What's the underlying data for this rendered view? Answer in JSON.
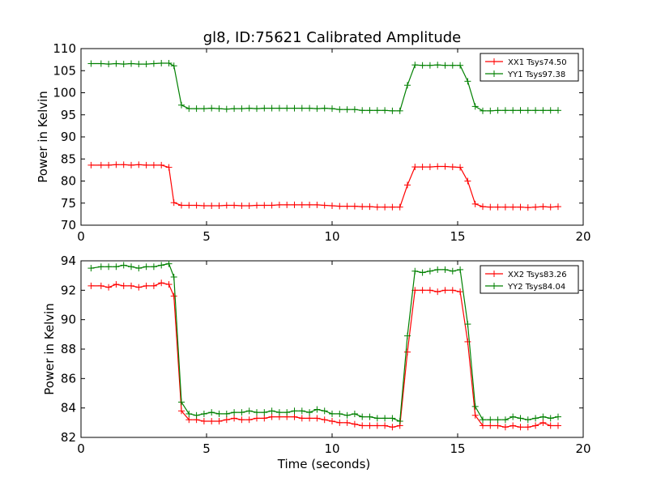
{
  "figure": {
    "title": "gl8, ID:75621 Calibrated Amplitude"
  },
  "chart_data": [
    {
      "type": "line",
      "title": "gl8, ID:75621 Calibrated Amplitude",
      "xlabel": "",
      "ylabel": "Power in Kelvin",
      "xlim": [
        0,
        20
      ],
      "ylim": [
        70,
        110
      ],
      "xticks": [
        0,
        5,
        10,
        15,
        20
      ],
      "yticks": [
        70,
        75,
        80,
        85,
        90,
        95,
        100,
        105,
        110
      ],
      "grid": false,
      "legend_position": "top-right",
      "x": [
        0.4,
        0.8,
        1.1,
        1.4,
        1.7,
        2.0,
        2.3,
        2.6,
        2.9,
        3.2,
        3.5,
        3.7,
        4.0,
        4.3,
        4.6,
        4.9,
        5.2,
        5.5,
        5.8,
        6.1,
        6.4,
        6.7,
        7.0,
        7.3,
        7.6,
        7.9,
        8.2,
        8.5,
        8.8,
        9.1,
        9.4,
        9.7,
        10.0,
        10.3,
        10.6,
        10.9,
        11.2,
        11.5,
        11.8,
        12.1,
        12.4,
        12.7,
        13.0,
        13.3,
        13.6,
        13.9,
        14.2,
        14.5,
        14.8,
        15.1,
        15.4,
        15.7,
        16.0,
        16.3,
        16.6,
        16.9,
        17.2,
        17.5,
        17.8,
        18.1,
        18.4,
        18.7,
        19.0
      ],
      "series": [
        {
          "name": "XX1 Tsys74.50",
          "color": "#ff0000",
          "values": [
            83.6,
            83.6,
            83.6,
            83.7,
            83.7,
            83.6,
            83.7,
            83.6,
            83.6,
            83.6,
            83.1,
            75.1,
            74.5,
            74.5,
            74.5,
            74.4,
            74.4,
            74.4,
            74.5,
            74.5,
            74.4,
            74.4,
            74.5,
            74.5,
            74.5,
            74.6,
            74.6,
            74.6,
            74.6,
            74.6,
            74.6,
            74.5,
            74.4,
            74.3,
            74.3,
            74.3,
            74.2,
            74.2,
            74.1,
            74.1,
            74.1,
            74.1,
            79.1,
            83.2,
            83.2,
            83.2,
            83.3,
            83.3,
            83.2,
            83.1,
            80.0,
            74.8,
            74.2,
            74.1,
            74.1,
            74.1,
            74.1,
            74.1,
            74.0,
            74.1,
            74.2,
            74.1,
            74.2
          ]
        },
        {
          "name": "YY1 Tsys97.38",
          "color": "#008000",
          "values": [
            106.6,
            106.6,
            106.5,
            106.6,
            106.5,
            106.6,
            106.5,
            106.5,
            106.6,
            106.7,
            106.7,
            106.1,
            97.2,
            96.4,
            96.4,
            96.4,
            96.5,
            96.4,
            96.3,
            96.4,
            96.4,
            96.5,
            96.4,
            96.5,
            96.5,
            96.5,
            96.5,
            96.5,
            96.5,
            96.5,
            96.4,
            96.5,
            96.4,
            96.2,
            96.2,
            96.2,
            96.0,
            96.0,
            96.0,
            96.0,
            95.9,
            95.9,
            101.7,
            106.3,
            106.2,
            106.2,
            106.3,
            106.2,
            106.2,
            106.2,
            102.6,
            96.9,
            95.9,
            95.9,
            96.0,
            96.0,
            96.0,
            96.0,
            96.0,
            96.0,
            96.0,
            96.0,
            96.0
          ]
        }
      ]
    },
    {
      "type": "line",
      "title": "",
      "xlabel": "Time (seconds)",
      "ylabel": "Power in Kelvin",
      "xlim": [
        0,
        20
      ],
      "ylim": [
        82,
        94
      ],
      "xticks": [
        0,
        5,
        10,
        15,
        20
      ],
      "yticks": [
        82,
        84,
        86,
        88,
        90,
        92,
        94
      ],
      "grid": false,
      "legend_position": "top-right",
      "x": [
        0.4,
        0.8,
        1.1,
        1.4,
        1.7,
        2.0,
        2.3,
        2.6,
        2.9,
        3.2,
        3.5,
        3.7,
        4.0,
        4.3,
        4.6,
        4.9,
        5.2,
        5.5,
        5.8,
        6.1,
        6.4,
        6.7,
        7.0,
        7.3,
        7.6,
        7.9,
        8.2,
        8.5,
        8.8,
        9.1,
        9.4,
        9.7,
        10.0,
        10.3,
        10.6,
        10.9,
        11.2,
        11.5,
        11.8,
        12.1,
        12.4,
        12.7,
        13.0,
        13.3,
        13.6,
        13.9,
        14.2,
        14.5,
        14.8,
        15.1,
        15.4,
        15.7,
        16.0,
        16.3,
        16.6,
        16.9,
        17.2,
        17.5,
        17.8,
        18.1,
        18.4,
        18.7,
        19.0
      ],
      "series": [
        {
          "name": "XX2 Tsys83.26",
          "color": "#ff0000",
          "values": [
            92.3,
            92.3,
            92.2,
            92.4,
            92.3,
            92.3,
            92.2,
            92.3,
            92.3,
            92.5,
            92.4,
            91.6,
            83.8,
            83.2,
            83.2,
            83.1,
            83.1,
            83.1,
            83.2,
            83.3,
            83.2,
            83.2,
            83.3,
            83.3,
            83.4,
            83.4,
            83.4,
            83.4,
            83.3,
            83.3,
            83.3,
            83.2,
            83.1,
            83.0,
            83.0,
            82.9,
            82.8,
            82.8,
            82.8,
            82.8,
            82.7,
            82.8,
            87.8,
            92.0,
            92.0,
            92.0,
            91.9,
            92.0,
            92.0,
            91.9,
            88.5,
            83.5,
            82.8,
            82.8,
            82.8,
            82.7,
            82.8,
            82.7,
            82.7,
            82.8,
            83.0,
            82.8,
            82.8
          ]
        },
        {
          "name": "YY2 Tsys84.04",
          "color": "#008000",
          "values": [
            93.5,
            93.6,
            93.6,
            93.6,
            93.7,
            93.6,
            93.5,
            93.6,
            93.6,
            93.7,
            93.8,
            92.9,
            84.4,
            83.6,
            83.5,
            83.6,
            83.7,
            83.6,
            83.6,
            83.7,
            83.7,
            83.8,
            83.7,
            83.7,
            83.8,
            83.7,
            83.7,
            83.8,
            83.8,
            83.7,
            83.9,
            83.8,
            83.6,
            83.6,
            83.5,
            83.6,
            83.4,
            83.4,
            83.3,
            83.3,
            83.3,
            83.1,
            88.9,
            93.3,
            93.2,
            93.3,
            93.4,
            93.4,
            93.3,
            93.4,
            89.7,
            84.1,
            83.2,
            83.2,
            83.2,
            83.2,
            83.4,
            83.3,
            83.2,
            83.3,
            83.4,
            83.3,
            83.4
          ]
        }
      ]
    }
  ]
}
